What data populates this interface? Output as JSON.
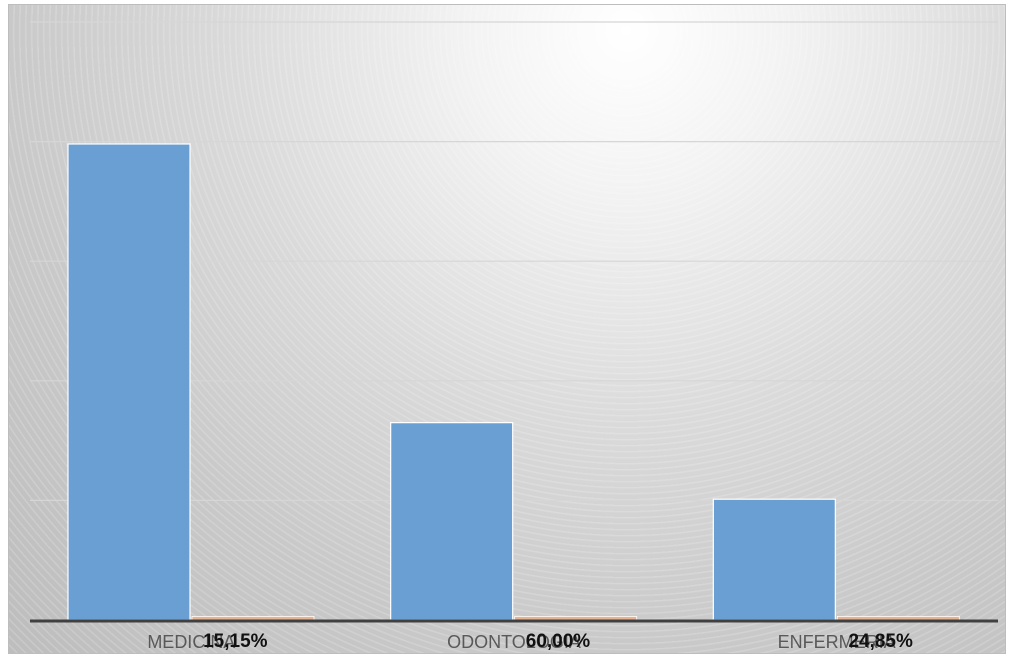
{
  "chart_data": {
    "type": "bar",
    "categories": [
      "MEDICINA",
      "ODONTOLOGIA",
      "ENFERMERIA"
    ],
    "series": [
      {
        "values": [
          3.98,
          1.65,
          1.01
        ]
      },
      {
        "values": [
          0.03,
          0.03,
          0.03
        ]
      }
    ],
    "data_labels": [
      "15,15%",
      "60,00%",
      "24,85%"
    ],
    "ylim": [
      0,
      5
    ],
    "grid": true,
    "legend": "none",
    "colors": {
      "series_1": "#6a9fd3",
      "series_2": "#e3b394",
      "axis": "#404040",
      "gridline": "#d6d6d6"
    }
  }
}
